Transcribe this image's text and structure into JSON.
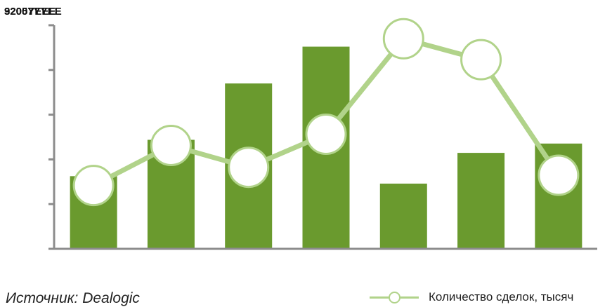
{
  "header_clutter": [
    "92007YYEE",
    "3205YEEE"
  ],
  "chart_data": {
    "type": "bar",
    "categories": [
      "",
      "",
      "",
      "",
      "",
      "",
      ""
    ],
    "series": [
      {
        "type": "bar",
        "values": [
          156,
          234,
          355,
          434,
          140,
          206,
          226
        ],
        "color": "#6a9a2e"
      },
      {
        "name": "Количество сделок, тысяч",
        "type": "line",
        "values": [
          136,
          222,
          175,
          246,
          451,
          406,
          158
        ],
        "color": "#b1d38a",
        "marker": "open-circle"
      }
    ],
    "ylim": [
      0,
      480
    ],
    "ytick_marks": [
      0,
      96,
      192,
      288,
      384,
      480
    ],
    "grid": false,
    "legend_position": "bottom-right"
  },
  "source_text": "Источник: Dealogic",
  "legend": {
    "label": "Количество сделок, тысяч"
  }
}
